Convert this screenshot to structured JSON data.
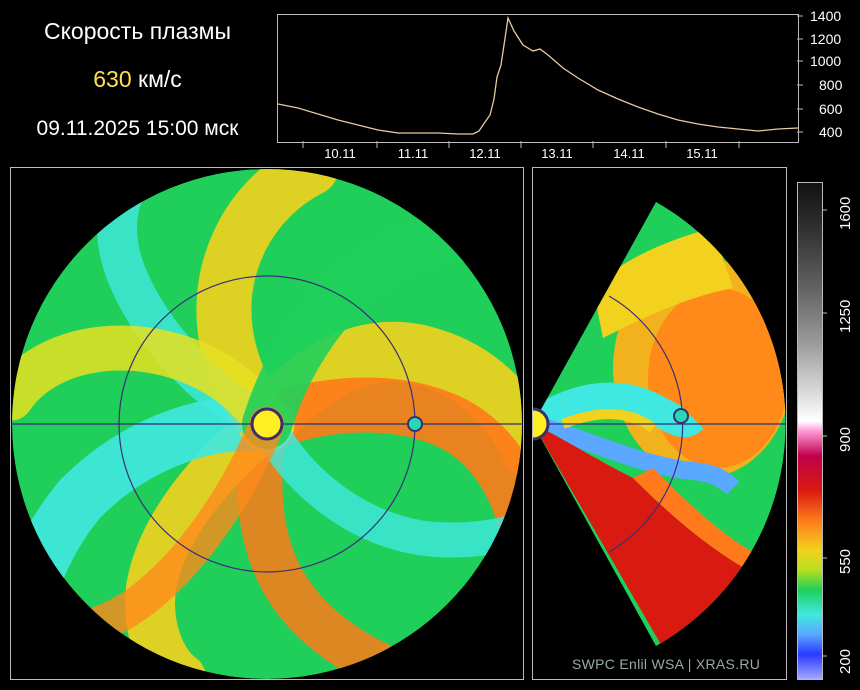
{
  "header": {
    "title": "Скорость плазмы",
    "speed_value": "630",
    "speed_unit": "км/с",
    "timestamp": "09.11.2025 15:00 мск"
  },
  "timeseries": {
    "y_ticks": [
      "1400",
      "1200",
      "1000",
      "800",
      "600",
      "400"
    ],
    "x_ticks": [
      "10.11",
      "11.11",
      "12.11",
      "13.11",
      "14.11",
      "15.11"
    ],
    "line_color": "#e8c9a0"
  },
  "colorbar": {
    "ticks": [
      "1600",
      "1250",
      "900",
      "550",
      "200"
    ]
  },
  "credit": "SWPC Enlil WSA  |  XRAS.RU",
  "colors": {
    "sun": "#ffee22",
    "earth": "#2ad6b8",
    "orbit": "#3a2f7a"
  }
}
